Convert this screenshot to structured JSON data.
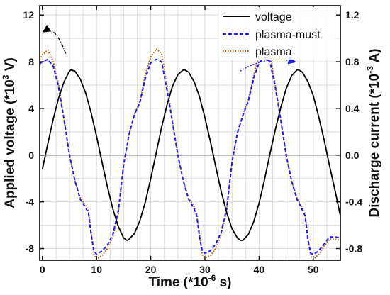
{
  "chart_data": {
    "type": "line",
    "xlabel": "Time (*10",
    "xlabel_sup": "-6",
    "xlabel_tail": " s)",
    "ylabel": "Applied voltage (*10",
    "ylabel_sup": "3",
    "ylabel_tail": " V)",
    "y2label": "Discharge current (*10",
    "y2label_sup": "-3",
    "y2label_tail": " A)",
    "xlim": [
      -0.5,
      55
    ],
    "ylim": [
      -9,
      12.8
    ],
    "y2lim": [
      -0.9,
      1.28
    ],
    "x_ticks": [
      0,
      10,
      20,
      30,
      40,
      50
    ],
    "y_ticks": [
      -8,
      -4,
      0,
      4,
      8,
      12
    ],
    "y2_ticks": [
      -0.8,
      -0.4,
      0.0,
      0.4,
      0.8,
      1.2
    ],
    "x_tick_labels": [
      "0",
      "10",
      "20",
      "30",
      "40",
      "50"
    ],
    "y_tick_labels": [
      "-8",
      "-4",
      "0",
      "4",
      "8",
      "12"
    ],
    "y2_tick_labels": [
      "-0.8",
      "-0.4",
      "0.0",
      "0.4",
      "0.8",
      "1.2"
    ],
    "grid": true,
    "legend_position": "top-right",
    "series": [
      {
        "name": "voltage",
        "axis": "left",
        "color": "#000000",
        "style": "solid",
        "x": [
          0,
          1,
          2,
          3,
          4,
          5,
          5.3,
          6,
          7,
          8,
          9,
          10,
          11,
          12,
          13,
          14,
          15,
          15.6,
          16,
          17,
          18,
          19,
          20,
          21,
          22,
          23,
          24,
          25,
          26,
          26.3,
          27,
          28,
          29,
          30,
          31,
          32,
          33,
          34,
          35,
          36,
          36.6,
          37,
          38,
          39,
          40,
          41,
          42,
          43,
          44,
          45,
          46,
          47,
          47.3,
          48,
          49,
          50,
          51,
          52,
          53,
          54,
          55
        ],
        "y": [
          -1.2,
          1.0,
          3.1,
          4.9,
          6.3,
          7.2,
          7.3,
          7.2,
          6.5,
          5.3,
          3.6,
          1.6,
          -0.6,
          -2.7,
          -4.6,
          -6.1,
          -7.1,
          -7.3,
          -7.2,
          -6.7,
          -5.6,
          -4.0,
          -2.0,
          0.2,
          2.4,
          4.3,
          5.9,
          6.9,
          7.3,
          7.3,
          7.1,
          6.3,
          5.0,
          3.2,
          1.2,
          -1.0,
          -3.1,
          -4.9,
          -6.3,
          -7.1,
          -7.3,
          -7.3,
          -6.8,
          -5.7,
          -4.1,
          -2.1,
          0.1,
          2.2,
          4.1,
          5.7,
          6.8,
          7.3,
          7.3,
          7.1,
          6.3,
          5.1,
          3.3,
          1.3,
          -0.9,
          -3.0,
          -5.2
        ]
      },
      {
        "name": "plasma-must",
        "axis": "right",
        "color": "#1a1aff",
        "style": "dashed",
        "x": [
          -0.5,
          0,
          1,
          2,
          3,
          4,
          5,
          6,
          7,
          8,
          8.5,
          9,
          9.5,
          10,
          11,
          12,
          13,
          14,
          15,
          16,
          17,
          18,
          19,
          20,
          21,
          22,
          23,
          24,
          25,
          26,
          27,
          28,
          28.5,
          29,
          29.5,
          30,
          31,
          32,
          33,
          34,
          35,
          36,
          37,
          38,
          39,
          40,
          41,
          42,
          43,
          44,
          45,
          46,
          47,
          48,
          48.5,
          49,
          49.5,
          50,
          51,
          52,
          53,
          54,
          55
        ],
        "y": [
          0.78,
          0.8,
          0.82,
          0.76,
          0.58,
          0.3,
          0.0,
          -0.22,
          -0.38,
          -0.45,
          -0.5,
          -0.68,
          -0.82,
          -0.85,
          -0.82,
          -0.77,
          -0.68,
          -0.48,
          -0.08,
          0.18,
          0.35,
          0.45,
          0.66,
          0.79,
          0.82,
          0.8,
          0.56,
          0.28,
          0.0,
          -0.22,
          -0.38,
          -0.46,
          -0.52,
          -0.7,
          -0.82,
          -0.84,
          -0.82,
          -0.76,
          -0.66,
          -0.46,
          -0.06,
          0.19,
          0.34,
          0.46,
          0.66,
          0.79,
          0.84,
          0.8,
          0.58,
          0.3,
          0.0,
          -0.22,
          -0.38,
          -0.47,
          -0.52,
          -0.72,
          -0.84,
          -0.85,
          -0.82,
          -0.76,
          -0.7,
          -0.7,
          -0.71
        ]
      },
      {
        "name": "plasma",
        "axis": "right",
        "color": "#b35900",
        "style": "dotted",
        "x": [
          -0.5,
          0,
          1,
          2,
          3,
          4,
          5,
          6,
          7,
          8,
          8.5,
          9,
          9.5,
          10,
          11,
          12,
          13,
          14,
          15,
          16,
          17,
          18,
          19,
          20,
          21,
          22,
          23,
          24,
          25,
          26,
          27,
          28,
          28.5,
          29,
          29.5,
          30,
          31,
          32,
          33,
          34,
          35,
          36,
          37,
          38,
          39,
          40,
          41,
          42,
          43,
          44,
          45,
          46,
          47,
          48,
          48.5,
          49,
          49.5,
          50,
          51,
          52,
          53,
          54,
          55
        ],
        "y": [
          0.82,
          0.86,
          0.9,
          0.8,
          0.6,
          0.3,
          0.0,
          -0.22,
          -0.37,
          -0.43,
          -0.48,
          -0.66,
          -0.85,
          -0.89,
          -0.86,
          -0.8,
          -0.7,
          -0.5,
          -0.08,
          0.18,
          0.35,
          0.46,
          0.69,
          0.84,
          0.91,
          0.87,
          0.6,
          0.3,
          0.0,
          -0.22,
          -0.37,
          -0.44,
          -0.5,
          -0.68,
          -0.85,
          -0.88,
          -0.86,
          -0.8,
          -0.68,
          -0.48,
          -0.06,
          0.19,
          0.35,
          0.47,
          0.68,
          0.85,
          0.9,
          0.86,
          0.6,
          0.3,
          0.0,
          -0.22,
          -0.37,
          -0.45,
          -0.5,
          -0.7,
          -0.86,
          -0.89,
          -0.85,
          -0.78,
          -0.72,
          -0.72,
          -0.73
        ]
      }
    ],
    "annotations": [
      {
        "name": "left-axis-arrow",
        "from": [
          4.3,
          8.7
        ],
        "to": [
          0.3,
          10.6
        ],
        "color": "#000000",
        "style": "dash-dot"
      },
      {
        "name": "right-axis-arrow",
        "from": [
          36.5,
          0.72
        ],
        "to": [
          46.5,
          0.8
        ],
        "color": "#1a1aff",
        "style": "dotted"
      }
    ]
  }
}
